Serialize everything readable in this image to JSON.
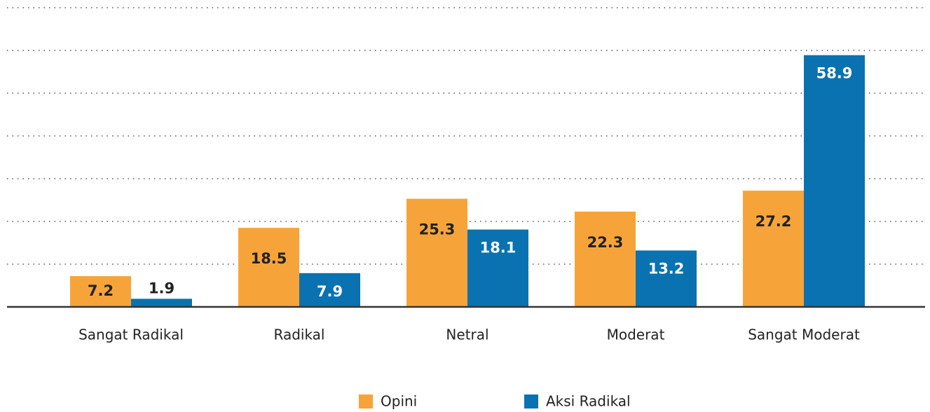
{
  "chart_data": {
    "type": "bar",
    "categories": [
      "Sangat Radikal",
      "Radikal",
      "Netral",
      "Moderat",
      "Sangat Moderat"
    ],
    "series": [
      {
        "name": "Opini",
        "color": "#f6a43a",
        "values": [
          7.2,
          18.5,
          25.3,
          22.3,
          27.2
        ]
      },
      {
        "name": "Aksi Radikal",
        "color": "#0a72b0",
        "values": [
          1.9,
          7.9,
          18.1,
          13.2,
          58.9
        ]
      }
    ],
    "ylim": [
      0,
      70
    ],
    "yticks": [
      10,
      20,
      30,
      40,
      50,
      60,
      70
    ],
    "grid": true
  }
}
